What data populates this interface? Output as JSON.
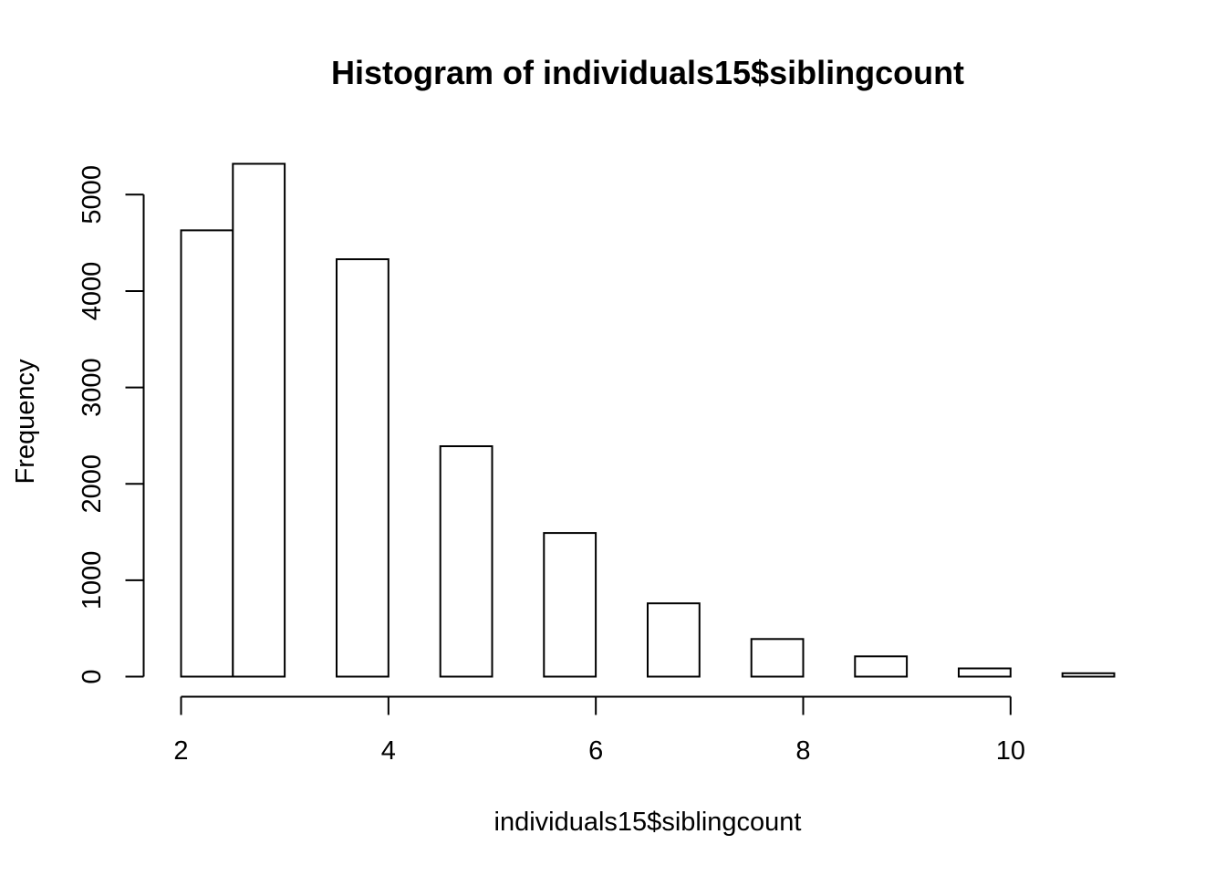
{
  "chart_data": {
    "type": "bar",
    "title": "Histogram of individuals15$siblingcount",
    "xlabel": "individuals15$siblingcount",
    "ylabel": "Frequency",
    "bins": [
      {
        "x0": 2.0,
        "x1": 2.5,
        "count": 4630
      },
      {
        "x0": 2.5,
        "x1": 3.0,
        "count": 5320
      },
      {
        "x0": 3.0,
        "x1": 3.5,
        "count": 0
      },
      {
        "x0": 3.5,
        "x1": 4.0,
        "count": 4330
      },
      {
        "x0": 4.0,
        "x1": 4.5,
        "count": 0
      },
      {
        "x0": 4.5,
        "x1": 5.0,
        "count": 2390
      },
      {
        "x0": 5.0,
        "x1": 5.5,
        "count": 0
      },
      {
        "x0": 5.5,
        "x1": 6.0,
        "count": 1490
      },
      {
        "x0": 6.0,
        "x1": 6.5,
        "count": 0
      },
      {
        "x0": 6.5,
        "x1": 7.0,
        "count": 760
      },
      {
        "x0": 7.0,
        "x1": 7.5,
        "count": 0
      },
      {
        "x0": 7.5,
        "x1": 8.0,
        "count": 390
      },
      {
        "x0": 8.0,
        "x1": 8.5,
        "count": 0
      },
      {
        "x0": 8.5,
        "x1": 9.0,
        "count": 210
      },
      {
        "x0": 9.0,
        "x1": 9.5,
        "count": 0
      },
      {
        "x0": 9.5,
        "x1": 10.0,
        "count": 85
      },
      {
        "x0": 10.0,
        "x1": 10.5,
        "count": 0
      },
      {
        "x0": 10.5,
        "x1": 11.0,
        "count": 35
      }
    ],
    "x_ticks": [
      2,
      4,
      6,
      8,
      10
    ],
    "y_ticks": [
      0,
      1000,
      2000,
      3000,
      4000,
      5000
    ],
    "xlim": [
      2,
      11
    ],
    "ylim": [
      0,
      5320
    ],
    "grid": false,
    "colors": {
      "bar_fill": "#ffffff",
      "bar_stroke": "#000000"
    }
  }
}
